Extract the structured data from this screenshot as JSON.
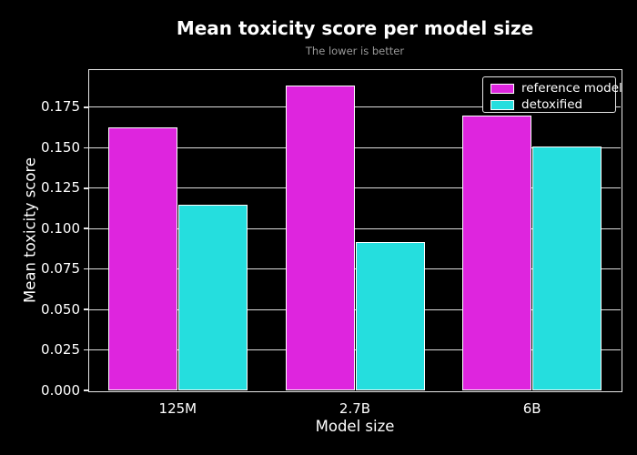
{
  "chart_data": {
    "type": "bar",
    "title": "Mean toxicity score per model size",
    "subtitle": "The lower is better",
    "xlabel": "Model size",
    "ylabel": "Mean toxicity score",
    "categories": [
      "125M",
      "2.7B",
      "6B"
    ],
    "series": [
      {
        "name": "reference model",
        "color": "#de25de",
        "values": [
          0.1627,
          0.1884,
          0.1699
        ]
      },
      {
        "name": "detoxified",
        "color": "#25dede",
        "values": [
          0.1148,
          0.0916,
          0.151
        ]
      }
    ],
    "ylim": [
      0,
      0.198
    ],
    "yticks": [
      "0.000",
      "0.025",
      "0.050",
      "0.075",
      "0.100",
      "0.125",
      "0.150",
      "0.175"
    ],
    "grid": true,
    "legend_position": "upper right",
    "background": "#000000",
    "text_color": "#ffffff",
    "subtitle_color": "#999999",
    "grid_color": "#dedede",
    "spine_color": "#e8e8e8",
    "bar_edge_color": "#ffffff"
  }
}
